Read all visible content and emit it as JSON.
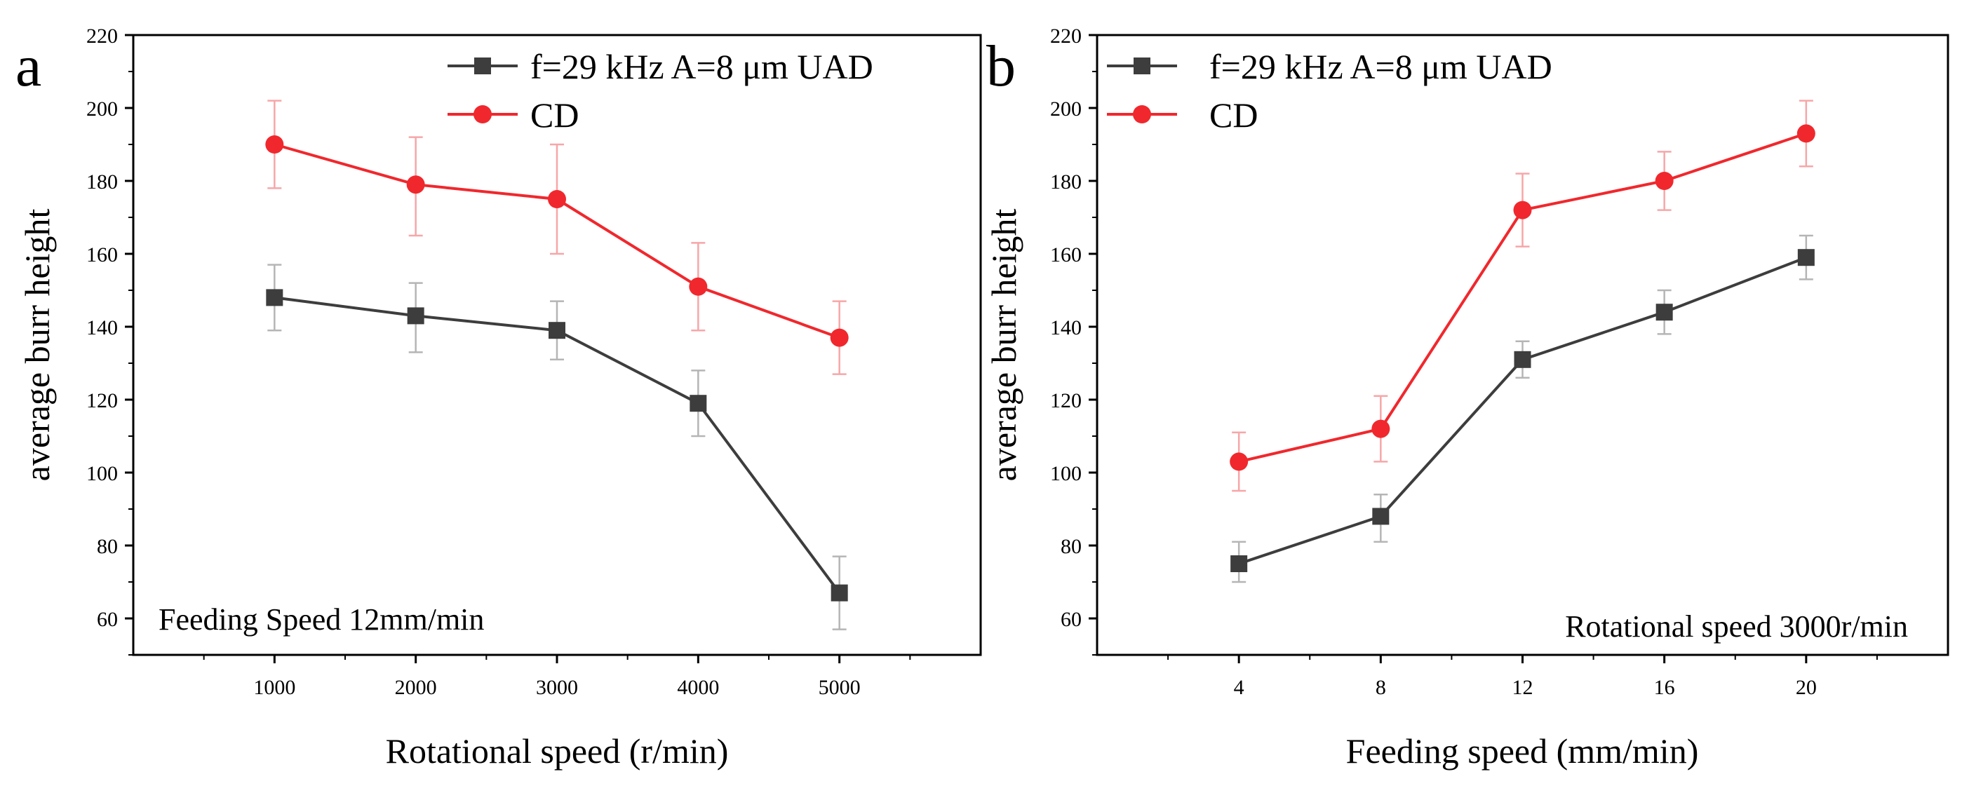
{
  "chart_data": [
    {
      "panel": "a",
      "type": "line",
      "xlabel": "Rotational speed (r/min)",
      "ylabel": "average burr height",
      "categories": [
        "1000",
        "2000",
        "3000",
        "4000",
        "5000"
      ],
      "x": [
        1000,
        2000,
        3000,
        4000,
        5000
      ],
      "xlim": [
        0,
        6000
      ],
      "ylim": [
        50,
        220
      ],
      "yticks": [
        60,
        80,
        100,
        120,
        140,
        160,
        180,
        200,
        220
      ],
      "annotation": "Feeding Speed 12mm/min",
      "legend_position": "top-right",
      "series": [
        {
          "name": "f=29 kHz A=8 μm UAD",
          "color": "#3d3d3d",
          "marker": "square",
          "values": [
            148,
            143,
            139,
            119,
            67
          ],
          "err_low": [
            139,
            133,
            131,
            110,
            57
          ],
          "err_high": [
            157,
            152,
            147,
            128,
            77
          ]
        },
        {
          "name": "CD",
          "color": "#f0282d",
          "marker": "circle",
          "values": [
            190,
            179,
            175,
            151,
            137
          ],
          "err_low": [
            178,
            165,
            160,
            139,
            127
          ],
          "err_high": [
            202,
            192,
            190,
            163,
            147
          ]
        }
      ]
    },
    {
      "panel": "b",
      "type": "line",
      "xlabel": "Feeding speed (mm/min)",
      "ylabel": "average burr height",
      "categories": [
        "4",
        "8",
        "12",
        "16",
        "20"
      ],
      "x": [
        4,
        8,
        12,
        16,
        20
      ],
      "xlim": [
        0,
        24
      ],
      "ylim": [
        50,
        220
      ],
      "yticks": [
        60,
        80,
        100,
        120,
        140,
        160,
        180,
        200,
        220
      ],
      "annotation": "Rotational speed 3000r/min",
      "legend_position": "top-left",
      "series": [
        {
          "name": "f=29 kHz A=8 μm UAD",
          "color": "#3d3d3d",
          "marker": "square",
          "values": [
            75,
            88,
            131,
            144,
            159
          ],
          "err_low": [
            70,
            81,
            126,
            138,
            153
          ],
          "err_high": [
            81,
            94,
            136,
            150,
            165
          ]
        },
        {
          "name": "CD",
          "color": "#f0282d",
          "marker": "circle",
          "values": [
            103,
            112,
            172,
            180,
            193
          ],
          "err_low": [
            95,
            103,
            162,
            172,
            184
          ],
          "err_high": [
            111,
            121,
            182,
            188,
            202
          ]
        }
      ]
    }
  ]
}
